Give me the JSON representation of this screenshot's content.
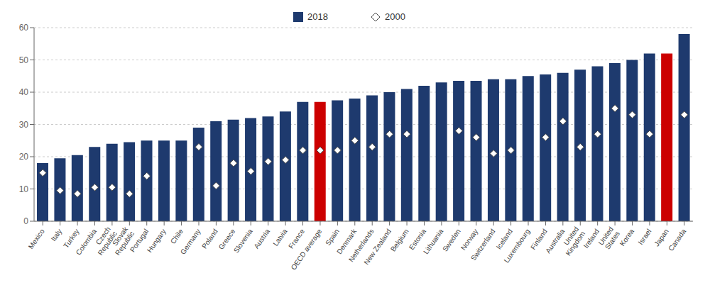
{
  "chart_data": {
    "type": "bar",
    "categories": [
      "Mexico",
      "Italy",
      "Turkey",
      "Colombia",
      "Czech\nRepublic",
      "Slovak\nRepublic",
      "Portugal",
      "Hungary",
      "Chile",
      "Germany",
      "Poland",
      "Greece",
      "Slovenia",
      "Austria",
      "Latvia",
      "France",
      "OECD average",
      "Spain",
      "Denmark",
      "Netherlands",
      "New Zealand",
      "Belgium",
      "Estonia",
      "Lithuania",
      "Sweden",
      "Norway",
      "Switzerland",
      "Iceland",
      "Luxembourg",
      "Finland",
      "Australia",
      "United\nKingdom",
      "Ireland",
      "United\nStates",
      "Korea",
      "Israel",
      "Japan",
      "Canada"
    ],
    "series": [
      {
        "name": "2018",
        "type": "bar",
        "color": "#1e3a6e",
        "colors": [
          "#1e3a6e",
          "#1e3a6e",
          "#1e3a6e",
          "#1e3a6e",
          "#1e3a6e",
          "#1e3a6e",
          "#1e3a6e",
          "#1e3a6e",
          "#1e3a6e",
          "#1e3a6e",
          "#1e3a6e",
          "#1e3a6e",
          "#1e3a6e",
          "#1e3a6e",
          "#1e3a6e",
          "#1e3a6e",
          "#cc0000",
          "#1e3a6e",
          "#1e3a6e",
          "#1e3a6e",
          "#1e3a6e",
          "#1e3a6e",
          "#1e3a6e",
          "#1e3a6e",
          "#1e3a6e",
          "#1e3a6e",
          "#1e3a6e",
          "#1e3a6e",
          "#1e3a6e",
          "#1e3a6e",
          "#1e3a6e",
          "#1e3a6e",
          "#1e3a6e",
          "#1e3a6e",
          "#1e3a6e",
          "#1e3a6e",
          "#cc0000",
          "#1e3a6e"
        ],
        "values": [
          18,
          19.5,
          20.5,
          23,
          24,
          24.5,
          25,
          25,
          25,
          29,
          31,
          31.5,
          32,
          32.5,
          34,
          37,
          37,
          37.5,
          38,
          39,
          40,
          41,
          42,
          43,
          43.5,
          43.5,
          44,
          44,
          45,
          45.5,
          46,
          47,
          48,
          49,
          50,
          52,
          52,
          58
        ]
      },
      {
        "name": "2000",
        "type": "scatter",
        "marker": "diamond",
        "values": [
          15,
          9.5,
          8.5,
          10.5,
          10.5,
          8.5,
          14,
          null,
          null,
          23,
          11,
          18,
          15.5,
          18.5,
          19,
          22,
          22,
          22,
          25,
          23,
          27,
          27,
          null,
          null,
          28,
          26,
          21,
          22,
          null,
          26,
          31,
          23,
          27,
          35,
          33,
          27,
          null,
          33
        ]
      }
    ],
    "ylim": [
      0,
      60
    ],
    "yticks": [
      0,
      10,
      20,
      30,
      40,
      50,
      60
    ],
    "grid": true,
    "legend": "top"
  }
}
